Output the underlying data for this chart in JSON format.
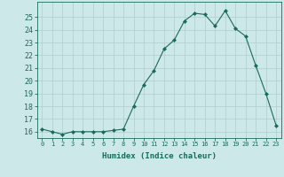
{
  "x": [
    0,
    1,
    2,
    3,
    4,
    5,
    6,
    7,
    8,
    9,
    10,
    11,
    12,
    13,
    14,
    15,
    16,
    17,
    18,
    19,
    20,
    21,
    22,
    23
  ],
  "y": [
    16.2,
    16.0,
    15.8,
    16.0,
    16.0,
    16.0,
    16.0,
    16.1,
    16.2,
    18.0,
    19.7,
    20.8,
    22.5,
    23.2,
    24.7,
    25.3,
    25.2,
    24.3,
    25.5,
    24.1,
    23.5,
    21.2,
    19.0,
    16.5
  ],
  "line_color": "#1a6b5a",
  "marker": "D",
  "marker_size": 2.0,
  "bg_color": "#cce8e8",
  "grid_color": "#b0cccc",
  "axis_color": "#1a6b5a",
  "xlabel": "Humidex (Indice chaleur)",
  "ylim": [
    15.5,
    26.2
  ],
  "xlim": [
    -0.5,
    23.5
  ],
  "yticks": [
    16,
    17,
    18,
    19,
    20,
    21,
    22,
    23,
    24,
    25
  ],
  "xticks": [
    0,
    1,
    2,
    3,
    4,
    5,
    6,
    7,
    8,
    9,
    10,
    11,
    12,
    13,
    14,
    15,
    16,
    17,
    18,
    19,
    20,
    21,
    22,
    23
  ],
  "xlabel_fontsize": 6.5,
  "xtick_fontsize": 5.0,
  "ytick_fontsize": 6.0
}
